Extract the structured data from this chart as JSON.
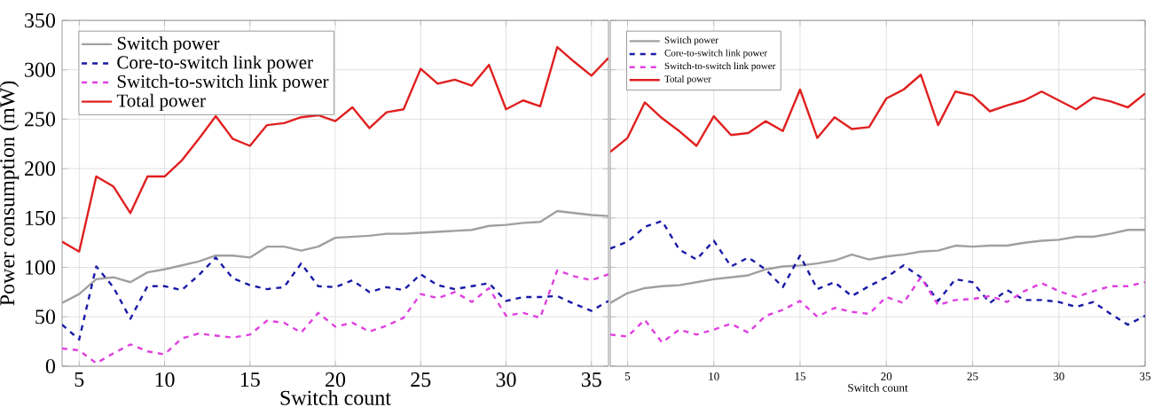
{
  "chart_data": [
    {
      "type": "line",
      "xlabel": "Switch count",
      "ylabel": "Power consumption (mW)",
      "x": [
        4,
        5,
        6,
        7,
        8,
        9,
        10,
        11,
        12,
        13,
        14,
        15,
        16,
        17,
        18,
        19,
        20,
        21,
        22,
        23,
        24,
        25,
        26,
        27,
        28,
        29,
        30,
        31,
        32,
        33,
        34,
        35,
        36
      ],
      "xlim": [
        4,
        36
      ],
      "xticks": [
        5,
        10,
        15,
        20,
        25,
        30,
        35
      ],
      "ylim": [
        0,
        350
      ],
      "yticks": [
        0,
        50,
        100,
        150,
        200,
        250,
        300,
        350
      ],
      "grid": true,
      "legend": "top left",
      "marker": "none",
      "series": [
        {
          "name": "Switch power",
          "color": "#a0a0a0",
          "line_style": "solid",
          "values": [
            64,
            73,
            88,
            90,
            85,
            95,
            98,
            102,
            106,
            112,
            112,
            110,
            121,
            121,
            117,
            121,
            130,
            131,
            132,
            134,
            134,
            135,
            136,
            137,
            138,
            142,
            143,
            145,
            146,
            157,
            155,
            153,
            152
          ]
        },
        {
          "name": "Core-to-switch link power",
          "color": "#1a1aa8",
          "line_style": "dashed",
          "values": [
            42,
            27,
            101,
            80,
            48,
            81,
            81,
            77,
            92,
            110,
            89,
            82,
            78,
            80,
            104,
            81,
            80,
            87,
            75,
            80,
            77,
            93,
            82,
            78,
            81,
            84,
            66,
            70,
            70,
            71,
            63,
            56,
            66
          ]
        },
        {
          "name": "Switch-to-switch link power",
          "color": "#e040e0",
          "line_style": "dashed",
          "values": [
            18,
            16,
            3,
            13,
            22,
            15,
            12,
            28,
            33,
            31,
            29,
            32,
            46,
            44,
            34,
            54,
            40,
            44,
            35,
            41,
            49,
            73,
            69,
            75,
            65,
            79,
            51,
            54,
            49,
            97,
            91,
            87,
            93
          ]
        },
        {
          "name": "Total power",
          "color": "#e02020",
          "line_style": "solid",
          "values": [
            126,
            116,
            192,
            182,
            155,
            192,
            192,
            208,
            230,
            253,
            230,
            223,
            244,
            246,
            252,
            254,
            248,
            262,
            241,
            257,
            260,
            301,
            286,
            290,
            284,
            305,
            260,
            269,
            263,
            323,
            308,
            294,
            312
          ]
        }
      ]
    },
    {
      "type": "line",
      "xlabel": "Switch count",
      "x": [
        4,
        5,
        6,
        7,
        8,
        9,
        10,
        11,
        12,
        13,
        14,
        15,
        16,
        17,
        18,
        19,
        20,
        21,
        22,
        23,
        24,
        25,
        26,
        27,
        28,
        29,
        30,
        31,
        32,
        33,
        34,
        35
      ],
      "xlim": [
        4,
        35
      ],
      "xticks": [
        5,
        10,
        15,
        20,
        25,
        30,
        35
      ],
      "ylim": [
        0,
        350
      ],
      "yticks": [
        0,
        50,
        100,
        150,
        200,
        250,
        300,
        350
      ],
      "tick_labels": "x",
      "grid": true,
      "legend": "top left",
      "marker": "none",
      "series": [
        {
          "name": "Switch power",
          "color": "#a0a0a0",
          "line_style": "solid",
          "values": [
            64,
            74,
            79,
            81,
            82,
            85,
            88,
            90,
            92,
            98,
            101,
            102,
            104,
            107,
            113,
            108,
            111,
            113,
            116,
            117,
            122,
            121,
            122,
            122,
            125,
            127,
            128,
            131,
            131,
            134,
            138,
            138
          ]
        },
        {
          "name": "Core-to-switch link power",
          "color": "#1a1aa8",
          "line_style": "dashed",
          "values": [
            119,
            126,
            141,
            147,
            118,
            108,
            127,
            101,
            110,
            98,
            80,
            112,
            78,
            85,
            71,
            81,
            90,
            102,
            90,
            66,
            88,
            85,
            64,
            77,
            67,
            67,
            65,
            60,
            65,
            53,
            42,
            51
          ]
        },
        {
          "name": "Switch-to-switch link power",
          "color": "#e040e0",
          "line_style": "dashed",
          "values": [
            32,
            30,
            47,
            24,
            37,
            32,
            37,
            43,
            34,
            51,
            57,
            66,
            50,
            59,
            55,
            53,
            70,
            64,
            90,
            62,
            67,
            68,
            71,
            65,
            76,
            84,
            76,
            70,
            76,
            81,
            81,
            85
          ]
        },
        {
          "name": "Total power",
          "color": "#e02020",
          "line_style": "solid",
          "values": [
            217,
            231,
            267,
            251,
            238,
            223,
            253,
            234,
            236,
            248,
            238,
            280,
            231,
            252,
            240,
            242,
            271,
            280,
            295,
            244,
            278,
            274,
            258,
            264,
            269,
            278,
            269,
            260,
            272,
            268,
            262,
            276
          ]
        }
      ]
    }
  ]
}
